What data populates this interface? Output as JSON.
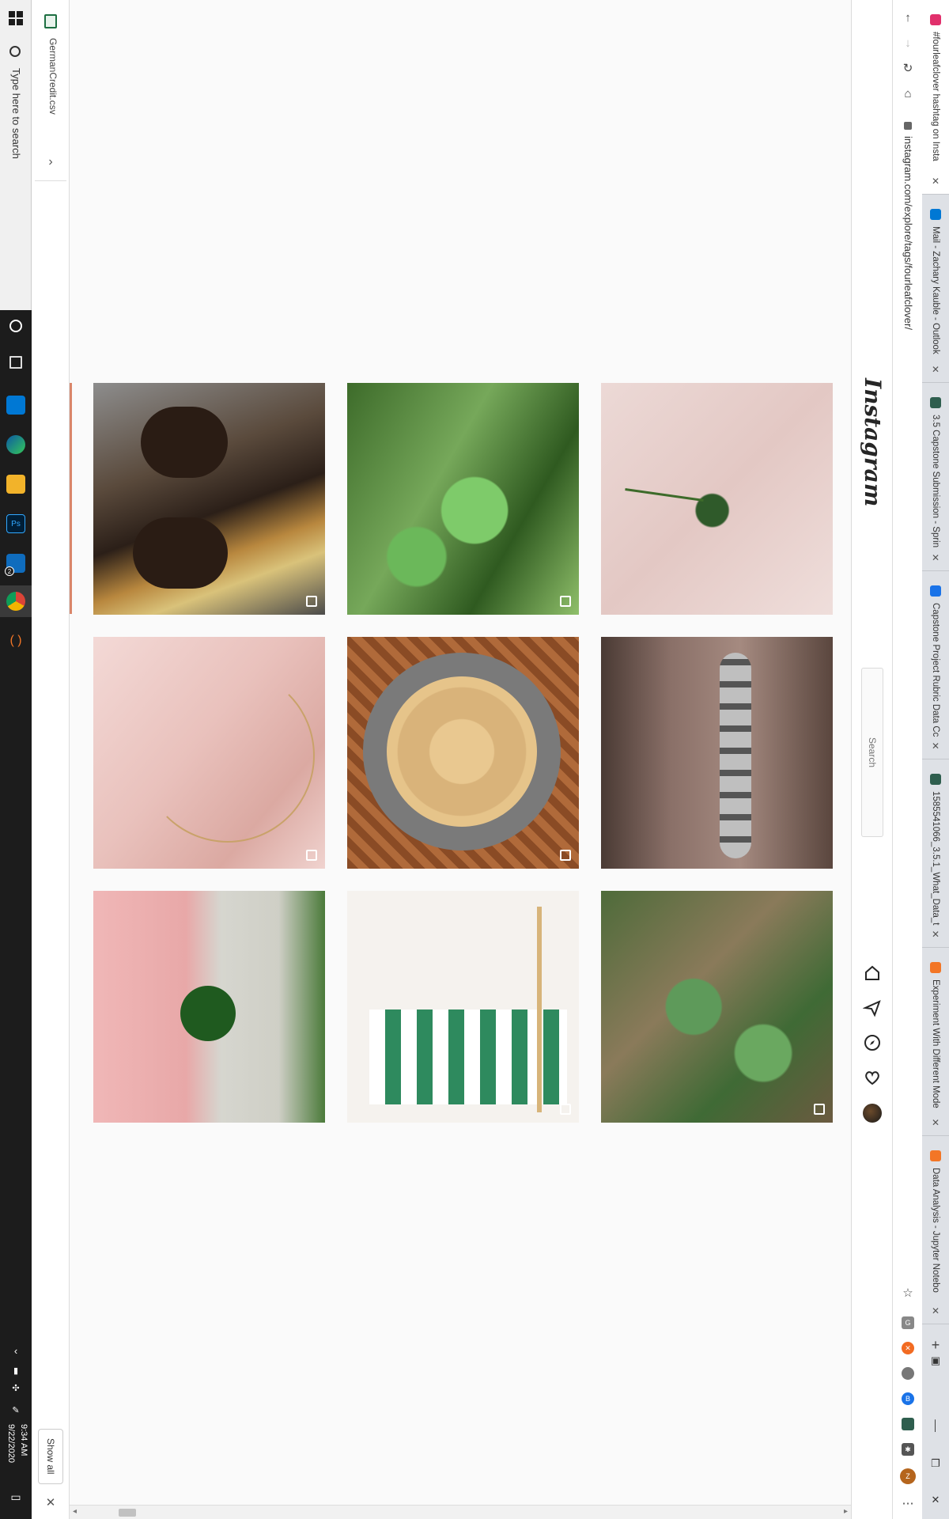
{
  "taskbar": {
    "search_placeholder": "Type here to search",
    "badge": "2",
    "photoshop_label": "Ps",
    "time": "9:34 AM",
    "date": "9/22/2020"
  },
  "downloads": {
    "file_name": "GermanCredit.csv",
    "show_all": "Show all"
  },
  "browser": {
    "url": "instagram.com/explore/tags/fourleafclover/",
    "tabs": [
      {
        "title": "#fourleafclover hashtag on Insta",
        "favicon_color": "#e1306c",
        "active": true
      },
      {
        "title": "Mail - Zachary Kauble - Outlook",
        "favicon_color": "#0078d4",
        "active": false
      },
      {
        "title": "3.5 Capstone Submission - Sprin",
        "favicon_color": "#2e5e4e",
        "active": false
      },
      {
        "title": "Capstone Project Rubric Data Cc",
        "favicon_color": "#1a73e8",
        "active": false
      },
      {
        "title": "1585541066_3.5.1_What_Data_to",
        "favicon_color": "#2e5e4e",
        "active": false
      },
      {
        "title": "Experiment With Different Mode",
        "favicon_color": "#f37626",
        "active": false
      },
      {
        "title": "Data Analysis - Jupyter Notebo",
        "favicon_color": "#f37626",
        "active": false
      }
    ],
    "extensions": [
      {
        "icon": "grammarly-icon",
        "color": "#888888",
        "label": "G"
      },
      {
        "icon": "orange-x-icon",
        "color": "#f26b22",
        "label": "✕"
      },
      {
        "icon": "circle-ext-icon",
        "color": "#777777",
        "label": ""
      },
      {
        "icon": "blue-b-icon",
        "color": "#1a73e8",
        "label": "B"
      },
      {
        "icon": "green-ext-icon",
        "color": "#2e5e4e",
        "label": ""
      },
      {
        "icon": "puzzle-icon",
        "color": "#555555",
        "label": "✱"
      },
      {
        "icon": "profile-icon",
        "color": "#b5651d",
        "label": "Z"
      }
    ]
  },
  "instagram": {
    "logo": "Instagram",
    "search_placeholder": "Search"
  }
}
